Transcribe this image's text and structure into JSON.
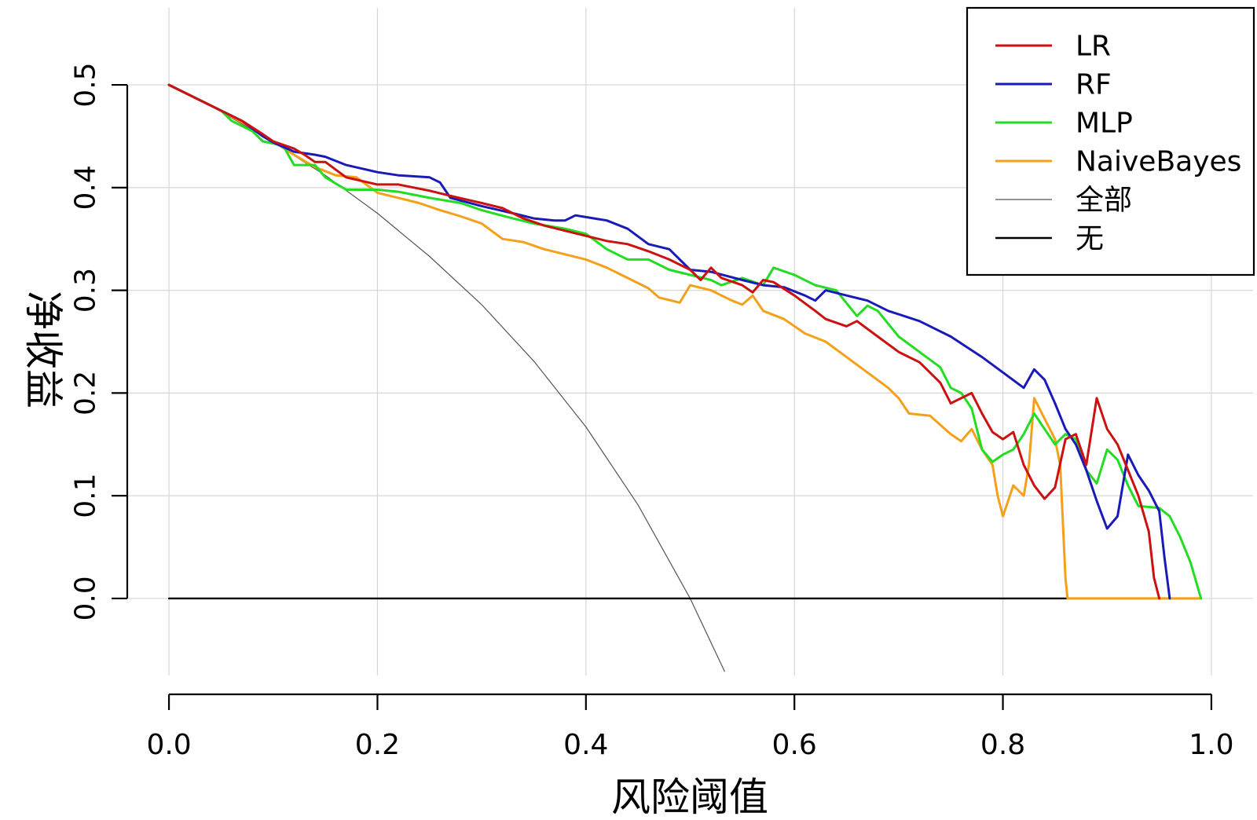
{
  "chart_data": {
    "type": "line",
    "xlabel": "风险阈值",
    "ylabel": "净收益",
    "xlim": [
      -0.04,
      1.04
    ],
    "ylim": [
      -0.075,
      0.575
    ],
    "x_ticks": [
      "0.0",
      "0.2",
      "0.4",
      "0.6",
      "0.8",
      "1.0"
    ],
    "y_ticks": [
      "0.0",
      "0.1",
      "0.2",
      "0.3",
      "0.4",
      "0.5"
    ],
    "grid": true,
    "legend_position": "top-right",
    "series": [
      {
        "name": "LR",
        "color": "#cc1111",
        "points": [
          [
            0,
            0.5
          ],
          [
            0.05,
            0.475
          ],
          [
            0.07,
            0.465
          ],
          [
            0.09,
            0.452
          ],
          [
            0.1,
            0.445
          ],
          [
            0.12,
            0.438
          ],
          [
            0.13,
            0.432
          ],
          [
            0.14,
            0.425
          ],
          [
            0.15,
            0.425
          ],
          [
            0.17,
            0.41
          ],
          [
            0.2,
            0.403
          ],
          [
            0.22,
            0.403
          ],
          [
            0.25,
            0.397
          ],
          [
            0.27,
            0.392
          ],
          [
            0.3,
            0.385
          ],
          [
            0.32,
            0.38
          ],
          [
            0.34,
            0.37
          ],
          [
            0.36,
            0.363
          ],
          [
            0.38,
            0.358
          ],
          [
            0.4,
            0.353
          ],
          [
            0.42,
            0.348
          ],
          [
            0.44,
            0.345
          ],
          [
            0.46,
            0.338
          ],
          [
            0.48,
            0.33
          ],
          [
            0.5,
            0.32
          ],
          [
            0.51,
            0.31
          ],
          [
            0.52,
            0.322
          ],
          [
            0.53,
            0.312
          ],
          [
            0.55,
            0.305
          ],
          [
            0.56,
            0.298
          ],
          [
            0.57,
            0.31
          ],
          [
            0.58,
            0.308
          ],
          [
            0.6,
            0.295
          ],
          [
            0.62,
            0.28
          ],
          [
            0.63,
            0.272
          ],
          [
            0.65,
            0.265
          ],
          [
            0.66,
            0.27
          ],
          [
            0.68,
            0.255
          ],
          [
            0.7,
            0.24
          ],
          [
            0.72,
            0.23
          ],
          [
            0.74,
            0.21
          ],
          [
            0.75,
            0.19
          ],
          [
            0.76,
            0.195
          ],
          [
            0.77,
            0.2
          ],
          [
            0.78,
            0.18
          ],
          [
            0.79,
            0.162
          ],
          [
            0.8,
            0.155
          ],
          [
            0.81,
            0.162
          ],
          [
            0.82,
            0.13
          ],
          [
            0.83,
            0.11
          ],
          [
            0.84,
            0.097
          ],
          [
            0.85,
            0.108
          ],
          [
            0.86,
            0.155
          ],
          [
            0.87,
            0.16
          ],
          [
            0.88,
            0.13
          ],
          [
            0.89,
            0.195
          ],
          [
            0.9,
            0.165
          ],
          [
            0.91,
            0.15
          ],
          [
            0.92,
            0.125
          ],
          [
            0.93,
            0.1
          ],
          [
            0.94,
            0.065
          ],
          [
            0.945,
            0.02
          ],
          [
            0.95,
            0.0
          ]
        ]
      },
      {
        "name": "RF",
        "color": "#1a1ab8",
        "points": [
          [
            0,
            0.5
          ],
          [
            0.05,
            0.475
          ],
          [
            0.07,
            0.465
          ],
          [
            0.09,
            0.45
          ],
          [
            0.1,
            0.444
          ],
          [
            0.12,
            0.435
          ],
          [
            0.14,
            0.432
          ],
          [
            0.15,
            0.43
          ],
          [
            0.17,
            0.422
          ],
          [
            0.2,
            0.415
          ],
          [
            0.22,
            0.412
          ],
          [
            0.25,
            0.41
          ],
          [
            0.26,
            0.405
          ],
          [
            0.27,
            0.39
          ],
          [
            0.3,
            0.382
          ],
          [
            0.33,
            0.375
          ],
          [
            0.35,
            0.37
          ],
          [
            0.37,
            0.368
          ],
          [
            0.38,
            0.368
          ],
          [
            0.39,
            0.373
          ],
          [
            0.42,
            0.368
          ],
          [
            0.44,
            0.36
          ],
          [
            0.46,
            0.345
          ],
          [
            0.48,
            0.34
          ],
          [
            0.5,
            0.32
          ],
          [
            0.52,
            0.318
          ],
          [
            0.55,
            0.31
          ],
          [
            0.57,
            0.305
          ],
          [
            0.59,
            0.303
          ],
          [
            0.61,
            0.295
          ],
          [
            0.62,
            0.29
          ],
          [
            0.63,
            0.3
          ],
          [
            0.65,
            0.295
          ],
          [
            0.67,
            0.29
          ],
          [
            0.69,
            0.28
          ],
          [
            0.72,
            0.27
          ],
          [
            0.75,
            0.255
          ],
          [
            0.78,
            0.235
          ],
          [
            0.8,
            0.22
          ],
          [
            0.82,
            0.205
          ],
          [
            0.83,
            0.223
          ],
          [
            0.84,
            0.213
          ],
          [
            0.85,
            0.19
          ],
          [
            0.86,
            0.165
          ],
          [
            0.87,
            0.15
          ],
          [
            0.88,
            0.125
          ],
          [
            0.89,
            0.095
          ],
          [
            0.9,
            0.068
          ],
          [
            0.91,
            0.08
          ],
          [
            0.92,
            0.14
          ],
          [
            0.93,
            0.12
          ],
          [
            0.94,
            0.105
          ],
          [
            0.95,
            0.085
          ],
          [
            0.955,
            0.04
          ],
          [
            0.96,
            0.0
          ]
        ]
      },
      {
        "name": "MLP",
        "color": "#22dd22",
        "points": [
          [
            0,
            0.5
          ],
          [
            0.05,
            0.475
          ],
          [
            0.06,
            0.465
          ],
          [
            0.08,
            0.455
          ],
          [
            0.09,
            0.445
          ],
          [
            0.1,
            0.443
          ],
          [
            0.11,
            0.44
          ],
          [
            0.12,
            0.422
          ],
          [
            0.14,
            0.422
          ],
          [
            0.15,
            0.41
          ],
          [
            0.17,
            0.398
          ],
          [
            0.2,
            0.398
          ],
          [
            0.22,
            0.396
          ],
          [
            0.25,
            0.39
          ],
          [
            0.28,
            0.385
          ],
          [
            0.3,
            0.378
          ],
          [
            0.33,
            0.37
          ],
          [
            0.35,
            0.365
          ],
          [
            0.38,
            0.36
          ],
          [
            0.4,
            0.355
          ],
          [
            0.42,
            0.34
          ],
          [
            0.44,
            0.33
          ],
          [
            0.46,
            0.33
          ],
          [
            0.48,
            0.32
          ],
          [
            0.5,
            0.315
          ],
          [
            0.52,
            0.31
          ],
          [
            0.53,
            0.305
          ],
          [
            0.55,
            0.312
          ],
          [
            0.57,
            0.305
          ],
          [
            0.58,
            0.322
          ],
          [
            0.6,
            0.315
          ],
          [
            0.62,
            0.305
          ],
          [
            0.64,
            0.3
          ],
          [
            0.66,
            0.275
          ],
          [
            0.67,
            0.285
          ],
          [
            0.68,
            0.28
          ],
          [
            0.7,
            0.255
          ],
          [
            0.72,
            0.24
          ],
          [
            0.74,
            0.225
          ],
          [
            0.75,
            0.205
          ],
          [
            0.76,
            0.2
          ],
          [
            0.77,
            0.185
          ],
          [
            0.78,
            0.145
          ],
          [
            0.79,
            0.133
          ],
          [
            0.8,
            0.14
          ],
          [
            0.81,
            0.145
          ],
          [
            0.82,
            0.16
          ],
          [
            0.83,
            0.18
          ],
          [
            0.84,
            0.165
          ],
          [
            0.85,
            0.15
          ],
          [
            0.86,
            0.16
          ],
          [
            0.87,
            0.155
          ],
          [
            0.88,
            0.125
          ],
          [
            0.89,
            0.112
          ],
          [
            0.9,
            0.145
          ],
          [
            0.91,
            0.135
          ],
          [
            0.92,
            0.11
          ],
          [
            0.93,
            0.09
          ],
          [
            0.95,
            0.088
          ],
          [
            0.96,
            0.08
          ],
          [
            0.97,
            0.06
          ],
          [
            0.98,
            0.035
          ],
          [
            0.99,
            0.0
          ]
        ]
      },
      {
        "name": "NaiveBayes",
        "color": "#f5a01a",
        "points": [
          [
            0,
            0.5
          ],
          [
            0.05,
            0.475
          ],
          [
            0.08,
            0.458
          ],
          [
            0.1,
            0.445
          ],
          [
            0.12,
            0.432
          ],
          [
            0.14,
            0.42
          ],
          [
            0.16,
            0.412
          ],
          [
            0.18,
            0.41
          ],
          [
            0.2,
            0.395
          ],
          [
            0.22,
            0.39
          ],
          [
            0.24,
            0.385
          ],
          [
            0.26,
            0.378
          ],
          [
            0.28,
            0.372
          ],
          [
            0.3,
            0.365
          ],
          [
            0.32,
            0.35
          ],
          [
            0.34,
            0.347
          ],
          [
            0.36,
            0.34
          ],
          [
            0.38,
            0.335
          ],
          [
            0.4,
            0.33
          ],
          [
            0.42,
            0.322
          ],
          [
            0.44,
            0.312
          ],
          [
            0.46,
            0.302
          ],
          [
            0.47,
            0.293
          ],
          [
            0.49,
            0.288
          ],
          [
            0.5,
            0.305
          ],
          [
            0.52,
            0.3
          ],
          [
            0.54,
            0.29
          ],
          [
            0.55,
            0.286
          ],
          [
            0.56,
            0.295
          ],
          [
            0.57,
            0.28
          ],
          [
            0.59,
            0.272
          ],
          [
            0.61,
            0.258
          ],
          [
            0.63,
            0.25
          ],
          [
            0.65,
            0.235
          ],
          [
            0.67,
            0.22
          ],
          [
            0.69,
            0.205
          ],
          [
            0.7,
            0.195
          ],
          [
            0.71,
            0.18
          ],
          [
            0.73,
            0.178
          ],
          [
            0.75,
            0.16
          ],
          [
            0.76,
            0.153
          ],
          [
            0.77,
            0.165
          ],
          [
            0.78,
            0.145
          ],
          [
            0.79,
            0.13
          ],
          [
            0.795,
            0.1
          ],
          [
            0.8,
            0.08
          ],
          [
            0.81,
            0.11
          ],
          [
            0.82,
            0.1
          ],
          [
            0.825,
            0.13
          ],
          [
            0.83,
            0.195
          ],
          [
            0.84,
            0.175
          ],
          [
            0.85,
            0.155
          ],
          [
            0.855,
            0.13
          ],
          [
            0.86,
            0.02
          ],
          [
            0.862,
            0.0
          ],
          [
            0.99,
            0.0
          ]
        ]
      },
      {
        "name": "全部",
        "color": "#555555",
        "points": [
          [
            0,
            0.5
          ],
          [
            0.05,
            0.474
          ],
          [
            0.1,
            0.444
          ],
          [
            0.15,
            0.412
          ],
          [
            0.2,
            0.375
          ],
          [
            0.25,
            0.333
          ],
          [
            0.3,
            0.286
          ],
          [
            0.35,
            0.231
          ],
          [
            0.4,
            0.167
          ],
          [
            0.45,
            0.091
          ],
          [
            0.5,
            0.0
          ],
          [
            0.533,
            -0.071
          ]
        ]
      },
      {
        "name": "无",
        "color": "#000000",
        "points": [
          [
            0,
            0
          ],
          [
            0.99,
            0
          ]
        ]
      }
    ]
  }
}
